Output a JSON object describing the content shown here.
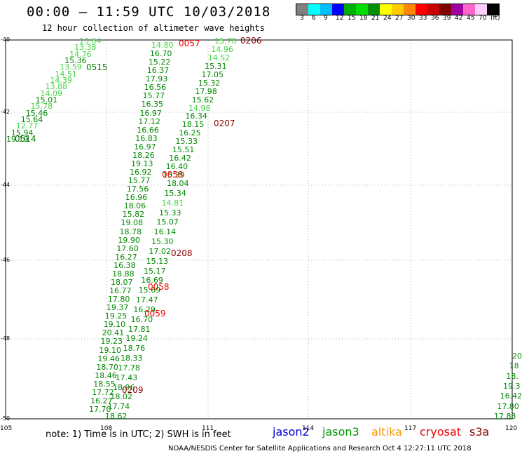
{
  "header": {
    "title": "00:00 – 11:59 UTC 10/03/2018",
    "subtitle": "12 hour collection of altimeter wave heights"
  },
  "colorbar": {
    "colors": [
      "#808080",
      "#00ffff",
      "#00bfff",
      "#0000ff",
      "#00b000",
      "#00e000",
      "#009000",
      "#ffff00",
      "#ffcc00",
      "#ff8800",
      "#ff0000",
      "#c80000",
      "#800000",
      "#a000a0",
      "#ff66cc",
      "#ffccff",
      "#000000"
    ],
    "labels": [
      "3",
      "6",
      "9",
      "12",
      "15",
      "18",
      "21",
      "24",
      "27",
      "30",
      "33",
      "36",
      "39",
      "42",
      "45",
      "70",
      "(ft)"
    ]
  },
  "map": {
    "lon_labels": [
      "105",
      "108",
      "111",
      "114",
      "117",
      "120"
    ],
    "lat_labels": [
      "-40",
      "-42",
      "-44",
      "-46",
      "-48",
      "-50"
    ]
  },
  "track_colors": {
    "light": "#44d444",
    "green": "#008800",
    "dkgreen": "#007700",
    "red": "#ee0000",
    "dkred": "#880000"
  },
  "tracks": [
    {
      "name": "jason3-0515",
      "values": [
        [
          "13.64",
          "light"
        ],
        [
          "13.38",
          "light"
        ],
        [
          "14.76",
          "light"
        ],
        [
          "15.36",
          "green"
        ],
        [
          "13.59",
          "light"
        ],
        [
          "14.51",
          "light"
        ],
        [
          "14.39",
          "light"
        ],
        [
          "13.88",
          "light"
        ],
        [
          "14.09",
          "light"
        ],
        [
          "15.01",
          "green"
        ],
        [
          "15.78",
          "light"
        ],
        [
          "15.46",
          "green"
        ],
        [
          "15.64",
          "green"
        ],
        [
          "12.77",
          "light"
        ],
        [
          "15.94",
          "green"
        ],
        [
          "19.19",
          "green"
        ]
      ]
    },
    {
      "name": "jason3-0057",
      "values": [
        [
          "14.80",
          "light"
        ],
        [
          "16.70",
          "green"
        ],
        [
          "15.22",
          "green"
        ],
        [
          "16.37",
          "green"
        ],
        [
          "17.93",
          "green"
        ],
        [
          "16.56",
          "green"
        ],
        [
          "15.77",
          "green"
        ],
        [
          "16.35",
          "green"
        ],
        [
          "16.97",
          "green"
        ],
        [
          "17.12",
          "green"
        ],
        [
          "16.66",
          "green"
        ],
        [
          "16.83",
          "green"
        ],
        [
          "16.97",
          "green"
        ],
        [
          "18.26",
          "green"
        ],
        [
          "19.13",
          "green"
        ],
        [
          "16.92",
          "green"
        ],
        [
          "15.77",
          "green"
        ],
        [
          "17.56",
          "green"
        ],
        [
          "16.96",
          "green"
        ],
        [
          "18.06",
          "green"
        ],
        [
          "15.82",
          "green"
        ],
        [
          "19.08",
          "green"
        ],
        [
          "18.78",
          "green"
        ],
        [
          "19.90",
          "green"
        ],
        [
          "17.60",
          "green"
        ],
        [
          "16.27",
          "green"
        ],
        [
          "16.38",
          "green"
        ],
        [
          "18.88",
          "green"
        ],
        [
          "18.07",
          "green"
        ],
        [
          "16.77",
          "green"
        ],
        [
          "17.80",
          "green"
        ],
        [
          "19.37",
          "green"
        ],
        [
          "19.25",
          "green"
        ],
        [
          "19.10",
          "green"
        ],
        [
          "20.41",
          "green"
        ],
        [
          "19.23",
          "green"
        ],
        [
          "19.10",
          "green"
        ],
        [
          "19.46",
          "green"
        ],
        [
          "18.70",
          "green"
        ],
        [
          "18.46",
          "green"
        ],
        [
          "18.55",
          "green"
        ],
        [
          "17.72",
          "green"
        ],
        [
          "16.27",
          "green"
        ],
        [
          "17.70",
          "green"
        ]
      ]
    },
    {
      "name": "jason3-0058",
      "values": [
        [
          "18.04",
          "green"
        ],
        [
          "15.34",
          "green"
        ],
        [
          "14.81",
          "light"
        ],
        [
          "15.33",
          "green"
        ],
        [
          "15.07",
          "green"
        ],
        [
          "16.14",
          "green"
        ],
        [
          "15.30",
          "green"
        ],
        [
          "17.02",
          "green"
        ],
        [
          "15.13",
          "green"
        ],
        [
          "15.17",
          "green"
        ],
        [
          "16.69",
          "green"
        ],
        [
          "15.69",
          "green"
        ],
        [
          "17.47",
          "green"
        ],
        [
          "16.29",
          "green"
        ],
        [
          "16.70",
          "green"
        ],
        [
          "17.81",
          "green"
        ],
        [
          "19.24",
          "green"
        ],
        [
          "18.76",
          "green"
        ],
        [
          "18.33",
          "green"
        ],
        [
          "17.78",
          "green"
        ],
        [
          "17.43",
          "green"
        ],
        [
          "18.96",
          "green"
        ],
        [
          "18.02",
          "green"
        ],
        [
          "17.74",
          "green"
        ],
        [
          "18.62",
          "green"
        ]
      ]
    },
    {
      "name": "jason3-0206",
      "values": [
        [
          "15.78",
          "light"
        ],
        [
          "14.96",
          "light"
        ],
        [
          "14.52",
          "light"
        ],
        [
          "15.31",
          "green"
        ],
        [
          "17.05",
          "green"
        ],
        [
          "15.32",
          "green"
        ],
        [
          "17.98",
          "green"
        ],
        [
          "15.62",
          "green"
        ],
        [
          "14.98",
          "light"
        ],
        [
          "16.34",
          "green"
        ],
        [
          "18.15",
          "green"
        ],
        [
          "16.25",
          "green"
        ],
        [
          "15.33",
          "green"
        ],
        [
          "15.51",
          "green"
        ],
        [
          "16.42",
          "green"
        ],
        [
          "16.40",
          "green"
        ],
        [
          "15.39",
          "green"
        ]
      ]
    },
    {
      "name": "jason3-east",
      "values": [
        [
          "20",
          "green"
        ],
        [
          "18",
          "green"
        ],
        [
          "18.",
          "green"
        ],
        [
          "19.3",
          "green"
        ],
        [
          "16.42",
          "green"
        ],
        [
          "17.80",
          "green"
        ],
        [
          "17.83",
          "green"
        ]
      ]
    }
  ],
  "pass_times": [
    {
      "label": "0515",
      "color": "dkgreen"
    },
    {
      "label": "0514",
      "color": "dkgreen"
    },
    {
      "label": "0057",
      "color": "red"
    },
    {
      "label": "0206",
      "color": "dkred"
    },
    {
      "label": "0207",
      "color": "dkred"
    },
    {
      "label": "0058",
      "color": "red"
    },
    {
      "label": "0208",
      "color": "dkred"
    },
    {
      "label": "0058",
      "color": "red"
    },
    {
      "label": "0059",
      "color": "red"
    },
    {
      "label": "0209",
      "color": "dkred"
    }
  ],
  "legend": {
    "note": "note:  1) Time is in UTC;  2) SWH is in feet",
    "satellites": [
      {
        "name": "jason2",
        "color": "#0000dd"
      },
      {
        "name": "jason3",
        "color": "#009900"
      },
      {
        "name": "altika",
        "color": "#ff9900"
      },
      {
        "name": "cryosat",
        "color": "#ee0000"
      },
      {
        "name": "s3a",
        "color": "#880000"
      }
    ]
  },
  "footer": "NOAA/NESDIS Center for Satellite Applications and Research     Oct  4 12:27:11 UTC 2018"
}
